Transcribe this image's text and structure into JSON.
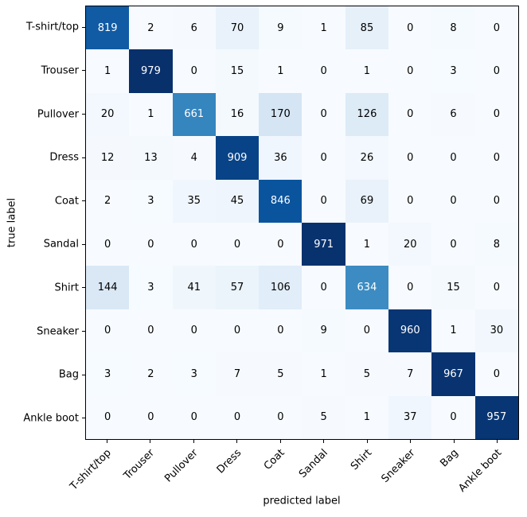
{
  "figure": {
    "background": "#ffffff",
    "spine_color": "#000000"
  },
  "chart_data": {
    "type": "heatmap",
    "title": "",
    "categories": [
      "T-shirt/top",
      "Trouser",
      "Pullover",
      "Dress",
      "Coat",
      "Sandal",
      "Shirt",
      "Sneaker",
      "Bag",
      "Ankle boot"
    ],
    "xlabel": "predicted label",
    "ylabel": "true label",
    "matrix": [
      [
        819,
        2,
        6,
        70,
        9,
        1,
        85,
        0,
        8,
        0
      ],
      [
        1,
        979,
        0,
        15,
        1,
        0,
        1,
        0,
        3,
        0
      ],
      [
        20,
        1,
        661,
        16,
        170,
        0,
        126,
        0,
        6,
        0
      ],
      [
        12,
        13,
        4,
        909,
        36,
        0,
        26,
        0,
        0,
        0
      ],
      [
        2,
        3,
        35,
        45,
        846,
        0,
        69,
        0,
        0,
        0
      ],
      [
        0,
        0,
        0,
        0,
        0,
        971,
        1,
        20,
        0,
        8
      ],
      [
        144,
        3,
        41,
        57,
        106,
        0,
        634,
        0,
        15,
        0
      ],
      [
        0,
        0,
        0,
        0,
        0,
        9,
        0,
        960,
        1,
        30
      ],
      [
        3,
        2,
        3,
        7,
        5,
        1,
        5,
        7,
        967,
        0
      ],
      [
        0,
        0,
        0,
        0,
        0,
        5,
        1,
        37,
        0,
        957
      ]
    ],
    "vmin": 0,
    "vmax": 979,
    "colormap": "Blues",
    "colormap_stops": [
      "#f7fbff",
      "#deebf7",
      "#c6dbef",
      "#9ecae1",
      "#6baed6",
      "#4292c6",
      "#2171b5",
      "#08519c",
      "#08306b"
    ],
    "annotation_text_dark": "#000000",
    "annotation_text_light": "#ffffff",
    "text_color_threshold": 489.5,
    "grid": false,
    "legend_position": "none"
  }
}
